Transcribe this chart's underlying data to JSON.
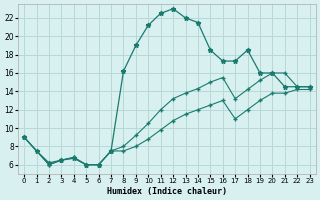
{
  "xlabel": "Humidex (Indice chaleur)",
  "bg_color": "#d8f0f0",
  "grid_color": "#b8d8d8",
  "line_color": "#1a7a6e",
  "xlim": [
    -0.5,
    23.5
  ],
  "ylim": [
    5.0,
    23.5
  ],
  "xticks": [
    0,
    1,
    2,
    3,
    4,
    5,
    6,
    7,
    8,
    9,
    10,
    11,
    12,
    13,
    14,
    15,
    16,
    17,
    18,
    19,
    20,
    21,
    22,
    23
  ],
  "yticks": [
    6,
    8,
    10,
    12,
    14,
    16,
    18,
    20,
    22
  ],
  "line1_x": [
    0,
    1,
    2,
    3,
    4,
    5,
    6,
    7,
    8,
    9,
    10,
    11,
    12,
    13,
    14,
    15,
    16,
    17,
    18,
    19,
    20,
    21,
    22,
    23
  ],
  "line1_y": [
    9.0,
    7.5,
    6.2,
    6.5,
    6.7,
    6.0,
    6.0,
    7.5,
    16.2,
    19.0,
    21.2,
    22.5,
    23.0,
    22.0,
    21.5,
    18.5,
    17.3,
    17.3,
    18.5,
    16.0,
    16.0,
    14.5,
    14.5,
    14.5
  ],
  "line2_x": [
    0,
    2,
    3,
    4,
    5,
    6,
    7,
    8,
    9,
    10,
    11,
    12,
    13,
    14,
    15,
    16,
    17,
    18,
    19,
    20,
    21,
    22,
    23
  ],
  "line2_y": [
    9.0,
    6.0,
    6.5,
    6.8,
    6.0,
    6.0,
    7.5,
    8.0,
    9.2,
    10.5,
    12.0,
    13.2,
    13.8,
    14.3,
    15.0,
    15.5,
    13.2,
    14.2,
    15.2,
    16.0,
    16.0,
    14.5,
    14.5
  ],
  "line3_x": [
    0,
    2,
    3,
    4,
    5,
    6,
    7,
    8,
    9,
    10,
    11,
    12,
    13,
    14,
    15,
    16,
    17,
    18,
    19,
    20,
    21,
    22,
    23
  ],
  "line3_y": [
    9.0,
    6.0,
    6.5,
    6.8,
    6.0,
    6.0,
    7.5,
    7.5,
    8.0,
    8.8,
    9.8,
    10.8,
    11.5,
    12.0,
    12.5,
    13.0,
    11.0,
    12.0,
    13.0,
    13.8,
    13.8,
    14.2,
    14.2
  ]
}
